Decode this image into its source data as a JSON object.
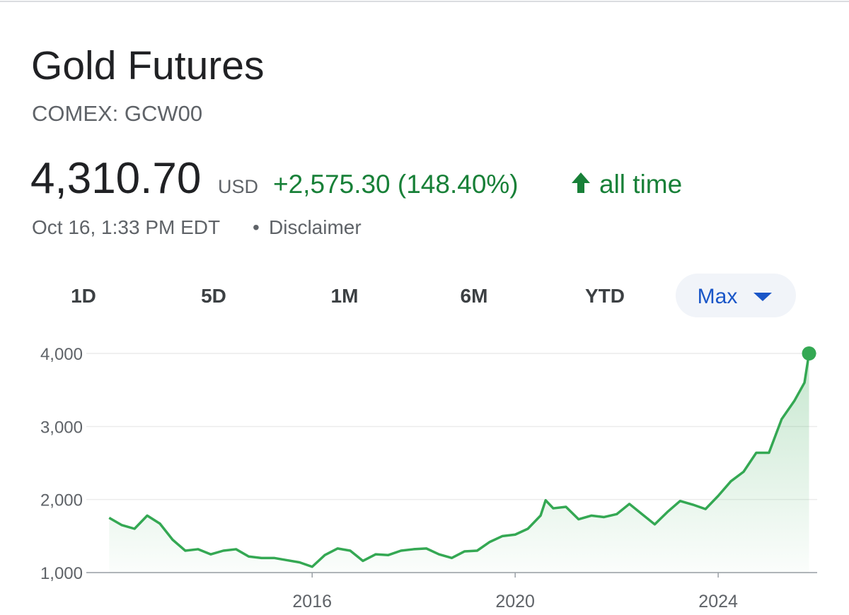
{
  "header": {
    "title": "Gold Futures",
    "symbol": "COMEX: GCW00"
  },
  "quote": {
    "price": "4,310.70",
    "currency": "USD",
    "change": "+2,575.30 (148.40%)",
    "period": "all time",
    "timestamp": "Oct 16, 1:33 PM EDT",
    "separator": "•",
    "disclaimer": "Disclaimer"
  },
  "tabs": [
    "1D",
    "5D",
    "1M",
    "6M",
    "YTD",
    "Max"
  ],
  "chart_data": {
    "type": "line",
    "color": "#34a853",
    "area": true,
    "grid": true,
    "x": [
      2012.0,
      2012.25,
      2012.5,
      2012.75,
      2013.0,
      2013.25,
      2013.5,
      2013.75,
      2014.0,
      2014.25,
      2014.5,
      2014.75,
      2015.0,
      2015.25,
      2015.5,
      2015.75,
      2016.0,
      2016.25,
      2016.5,
      2016.75,
      2017.0,
      2017.25,
      2017.5,
      2017.75,
      2018.0,
      2018.25,
      2018.5,
      2018.75,
      2019.0,
      2019.25,
      2019.5,
      2019.75,
      2020.0,
      2020.25,
      2020.5,
      2020.6,
      2020.75,
      2021.0,
      2021.25,
      2021.5,
      2021.75,
      2022.0,
      2022.25,
      2022.5,
      2022.75,
      2023.0,
      2023.25,
      2023.5,
      2023.75,
      2024.0,
      2024.25,
      2024.5,
      2024.75,
      2025.0,
      2025.25,
      2025.5,
      2025.7,
      2025.79
    ],
    "values": [
      1750,
      1650,
      1600,
      1780,
      1670,
      1450,
      1300,
      1320,
      1250,
      1300,
      1320,
      1220,
      1200,
      1200,
      1170,
      1140,
      1080,
      1240,
      1330,
      1300,
      1160,
      1250,
      1240,
      1300,
      1320,
      1330,
      1250,
      1200,
      1290,
      1300,
      1420,
      1500,
      1520,
      1600,
      1780,
      1990,
      1880,
      1900,
      1730,
      1780,
      1760,
      1800,
      1940,
      1800,
      1660,
      1830,
      1980,
      1930,
      1870,
      2050,
      2250,
      2380,
      2640,
      2640,
      3100,
      3350,
      3600,
      4000
    ],
    "xlim": [
      2011.55,
      2025.95
    ],
    "xticks": [
      2016,
      2020,
      2024
    ],
    "ylim": [
      1000,
      4000
    ],
    "yticks": [
      {
        "value": 1000,
        "label": "1,000"
      },
      {
        "value": 2000,
        "label": "2,000"
      },
      {
        "value": 3000,
        "label": "3,000"
      },
      {
        "value": 4000,
        "label": "4,000"
      }
    ]
  }
}
